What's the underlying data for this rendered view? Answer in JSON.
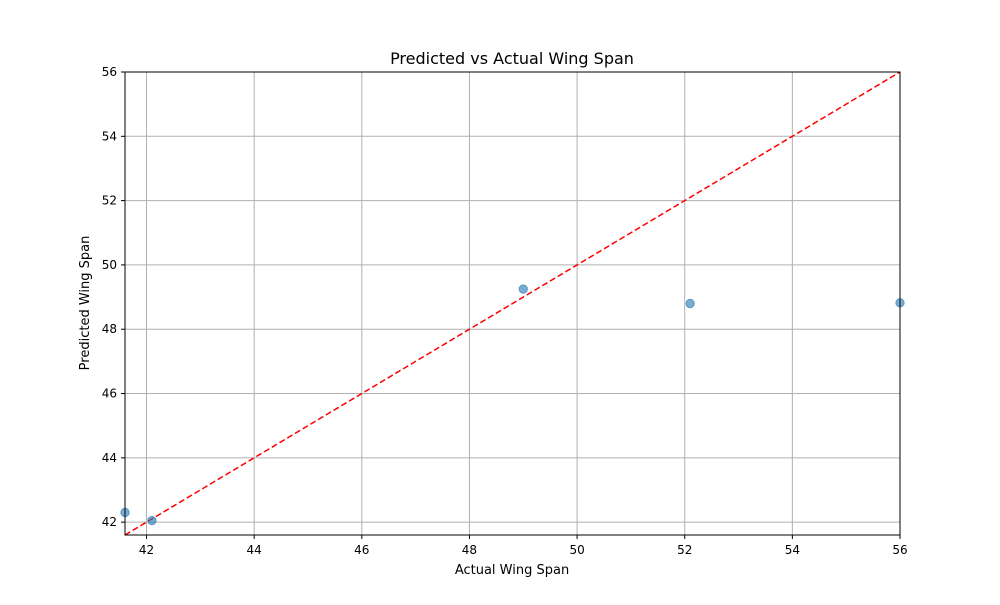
{
  "chart_data": {
    "type": "scatter",
    "title": "Predicted vs Actual Wing Span",
    "xlabel": "Actual Wing Span",
    "ylabel": "Predicted Wing Span",
    "xlim": [
      41.6,
      56.0
    ],
    "ylim": [
      41.6,
      56.0
    ],
    "xticks": [
      "42",
      "44",
      "46",
      "48",
      "50",
      "52",
      "54",
      "56"
    ],
    "yticks": [
      "42",
      "44",
      "46",
      "48",
      "50",
      "52",
      "54",
      "56"
    ],
    "grid": true,
    "points": [
      {
        "x": 41.6,
        "y": 42.3
      },
      {
        "x": 42.1,
        "y": 42.05
      },
      {
        "x": 49.0,
        "y": 49.25
      },
      {
        "x": 52.1,
        "y": 48.8
      },
      {
        "x": 56.0,
        "y": 48.82
      }
    ],
    "reference_line": {
      "from": [
        41.6,
        41.6
      ],
      "to": [
        56.0,
        56.0
      ],
      "style": "dashed"
    },
    "colors": {
      "points": "#1f77b4",
      "reference_line": "#ff0000",
      "grid": "#b0b0b0",
      "axes": "#000000"
    }
  }
}
